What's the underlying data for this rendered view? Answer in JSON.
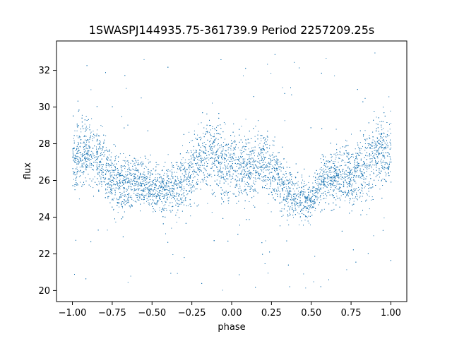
{
  "chart_data": {
    "type": "scatter",
    "title": "1SWASPJ144935.75-361739.9 Period 2257209.25s",
    "xlabel": "phase",
    "ylabel": "flux",
    "xlim": [
      -1.1,
      1.1
    ],
    "ylim": [
      19.4,
      33.6
    ],
    "xticks": [
      -1.0,
      -0.75,
      -0.5,
      -0.25,
      0.0,
      0.25,
      0.5,
      0.75,
      1.0
    ],
    "xtick_labels": [
      "−1.00",
      "−0.75",
      "−0.50",
      "−0.25",
      "0.00",
      "0.25",
      "0.50",
      "0.75",
      "1.00"
    ],
    "yticks": [
      20,
      22,
      24,
      26,
      28,
      30,
      32
    ],
    "ytick_labels": [
      "20",
      "22",
      "24",
      "26",
      "28",
      "30",
      "32"
    ],
    "grid": false,
    "legend": "none",
    "marker_color": "#1f77b4",
    "series": [
      {
        "approx_points": 9000,
        "phase_range": [
          -1.0,
          1.0
        ],
        "flux_envelope": {
          "phase": [
            -1.0,
            -0.9,
            -0.75,
            -0.6,
            -0.5,
            -0.4,
            -0.3,
            -0.2,
            -0.1,
            0.0,
            0.1,
            0.25,
            0.4,
            0.5,
            0.6,
            0.7,
            0.8,
            0.9,
            1.0
          ],
          "flux_center": [
            27.0,
            27.2,
            26.5,
            25.9,
            25.0,
            25.8,
            26.4,
            26.8,
            27.1,
            27.0,
            26.8,
            26.3,
            25.6,
            24.9,
            25.7,
            26.4,
            26.9,
            27.2,
            27.0
          ],
          "flux_spread": [
            1.4,
            1.6,
            1.3,
            1.1,
            0.9,
            1.1,
            1.3,
            1.5,
            1.6,
            1.5,
            1.4,
            1.3,
            1.1,
            0.9,
            1.1,
            1.3,
            1.5,
            1.6,
            1.4
          ]
        },
        "outlier_range": [
          20.0,
          33.0
        ]
      }
    ]
  }
}
